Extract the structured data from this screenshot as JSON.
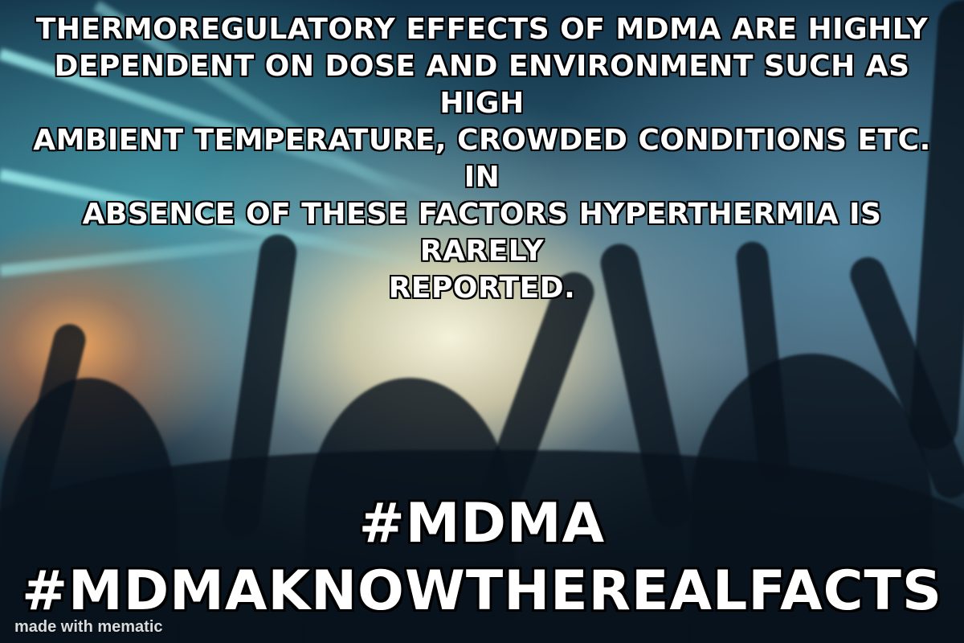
{
  "headline": {
    "lines": [
      "THERMOREGULATORY EFFECTS OF MDMA  ARE HIGHLY",
      "DEPENDENT ON DOSE AND ENVIRONMENT SUCH AS HIGH",
      "AMBIENT TEMPERATURE, CROWDED CONDITIONS ETC. IN",
      "ABSENCE OF THESE  FACTORS HYPERTHERMIA IS RARELY",
      "REPORTED."
    ]
  },
  "hashtags": {
    "tag1": "#MDMA",
    "tag2": "#MDMAKNOWTHEREALFACTS"
  },
  "watermark": {
    "text": "made with mematic"
  },
  "colors": {
    "text": "#ffffff",
    "outline": "#000000"
  }
}
